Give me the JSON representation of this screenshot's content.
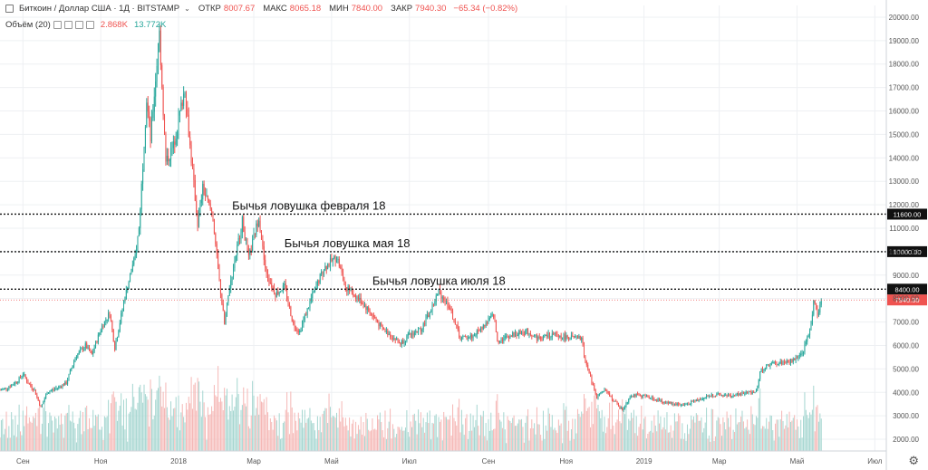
{
  "legend": {
    "symbol": "Биткоин / Доллар США · 1Д · BITSTAMP",
    "open_label": "ОТКР",
    "open": "8007.67",
    "high_label": "МАКС",
    "high": "8065.18",
    "low_label": "МИН",
    "low": "7840.00",
    "close_label": "ЗАКР",
    "close": "7940.30",
    "change": "−65.34 (−0.82%)"
  },
  "volume_legend": {
    "label": "Объём (20)",
    "value1": "2.868K",
    "value2": "13.772K"
  },
  "colors": {
    "up": "#26a69a",
    "down": "#ef5350",
    "volume_up": "#a5d6d0",
    "volume_down": "#f5b7b5",
    "grid": "#eef0f3",
    "text": "#333333"
  },
  "chart_data": {
    "type": "candlestick",
    "title": "Биткоин / Доллар США · 1Д · BITSTAMP",
    "x_range": [
      "2017-08-14",
      "2019-07-10"
    ],
    "y_range": [
      1500,
      20500
    ],
    "y_ticks": [
      2000,
      3000,
      4000,
      5000,
      6000,
      7000,
      8000,
      9000,
      10000,
      11000,
      12000,
      13000,
      14000,
      15000,
      16000,
      17000,
      18000,
      19000,
      20000
    ],
    "y_tick_labels": [
      "2000.00",
      "3000.00",
      "4000.00",
      "5000.00",
      "6000.00",
      "7000.00",
      "8000.00",
      "9000.00",
      "10000.00",
      "11000.00",
      "12000.00",
      "13000.00",
      "14000.00",
      "15000.00",
      "16000.00",
      "17000.00",
      "18000.00",
      "19000.00",
      "20000.00"
    ],
    "x_ticks": [
      {
        "date": "2017-09-01",
        "label": "Сен"
      },
      {
        "date": "2017-11-01",
        "label": "Ноя"
      },
      {
        "date": "2018-01-01",
        "label": "2018"
      },
      {
        "date": "2018-03-01",
        "label": "Мар"
      },
      {
        "date": "2018-05-01",
        "label": "Май"
      },
      {
        "date": "2018-07-01",
        "label": "Июл"
      },
      {
        "date": "2018-09-01",
        "label": "Сен"
      },
      {
        "date": "2018-11-01",
        "label": "Ноя"
      },
      {
        "date": "2019-01-01",
        "label": "2019"
      },
      {
        "date": "2019-03-01",
        "label": "Мар"
      },
      {
        "date": "2019-05-01",
        "label": "Май"
      },
      {
        "date": "2019-07-01",
        "label": "Июл"
      }
    ],
    "price_series": [
      [
        "2017-08-14",
        4100
      ],
      [
        "2017-08-20",
        4200
      ],
      [
        "2017-08-28",
        4500
      ],
      [
        "2017-09-01",
        4800
      ],
      [
        "2017-09-05",
        4400
      ],
      [
        "2017-09-10",
        4100
      ],
      [
        "2017-09-15",
        3350
      ],
      [
        "2017-09-20",
        4000
      ],
      [
        "2017-09-28",
        4200
      ],
      [
        "2017-10-05",
        4400
      ],
      [
        "2017-10-12",
        5500
      ],
      [
        "2017-10-20",
        6000
      ],
      [
        "2017-10-25",
        5600
      ],
      [
        "2017-11-01",
        6700
      ],
      [
        "2017-11-08",
        7400
      ],
      [
        "2017-11-12",
        5900
      ],
      [
        "2017-11-20",
        8100
      ],
      [
        "2017-11-28",
        9800
      ],
      [
        "2017-12-01",
        11000
      ],
      [
        "2017-12-07",
        16500
      ],
      [
        "2017-12-10",
        14800
      ],
      [
        "2017-12-17",
        19300
      ],
      [
        "2017-12-22",
        13800
      ],
      [
        "2017-12-28",
        14500
      ],
      [
        "2018-01-06",
        17000
      ],
      [
        "2018-01-10",
        14500
      ],
      [
        "2018-01-16",
        11200
      ],
      [
        "2018-01-20",
        12700
      ],
      [
        "2018-01-28",
        11500
      ],
      [
        "2018-02-01",
        9200
      ],
      [
        "2018-02-06",
        6900
      ],
      [
        "2018-02-10",
        8500
      ],
      [
        "2018-02-20",
        11300
      ],
      [
        "2018-02-25",
        9700
      ],
      [
        "2018-03-05",
        11500
      ],
      [
        "2018-03-10",
        9200
      ],
      [
        "2018-03-18",
        8200
      ],
      [
        "2018-03-25",
        8500
      ],
      [
        "2018-04-01",
        6900
      ],
      [
        "2018-04-06",
        6600
      ],
      [
        "2018-04-15",
        8000
      ],
      [
        "2018-04-25",
        9300
      ],
      [
        "2018-05-05",
        9800
      ],
      [
        "2018-05-12",
        8500
      ],
      [
        "2018-05-22",
        8000
      ],
      [
        "2018-05-30",
        7500
      ],
      [
        "2018-06-10",
        6700
      ],
      [
        "2018-06-24",
        6100
      ],
      [
        "2018-06-30",
        6400
      ],
      [
        "2018-07-10",
        6700
      ],
      [
        "2018-07-17",
        7400
      ],
      [
        "2018-07-24",
        8300
      ],
      [
        "2018-08-01",
        7700
      ],
      [
        "2018-08-10",
        6300
      ],
      [
        "2018-08-20",
        6400
      ],
      [
        "2018-08-31",
        7000
      ],
      [
        "2018-09-05",
        7300
      ],
      [
        "2018-09-08",
        6200
      ],
      [
        "2018-09-20",
        6450
      ],
      [
        "2018-10-01",
        6600
      ],
      [
        "2018-10-11",
        6300
      ],
      [
        "2018-10-20",
        6450
      ],
      [
        "2018-11-01",
        6350
      ],
      [
        "2018-11-13",
        6300
      ],
      [
        "2018-11-15",
        5600
      ],
      [
        "2018-11-20",
        4600
      ],
      [
        "2018-11-25",
        3800
      ],
      [
        "2018-12-01",
        4100
      ],
      [
        "2018-12-15",
        3250
      ],
      [
        "2018-12-22",
        3900
      ],
      [
        "2019-01-05",
        3800
      ],
      [
        "2019-01-15",
        3600
      ],
      [
        "2019-02-01",
        3450
      ],
      [
        "2019-02-08",
        3600
      ],
      [
        "2019-02-24",
        3900
      ],
      [
        "2019-03-10",
        3850
      ],
      [
        "2019-03-30",
        4050
      ],
      [
        "2019-04-02",
        4900
      ],
      [
        "2019-04-10",
        5200
      ],
      [
        "2019-04-25",
        5300
      ],
      [
        "2019-05-05",
        5600
      ],
      [
        "2019-05-12",
        6900
      ],
      [
        "2019-05-14",
        7900
      ],
      [
        "2019-05-17",
        7300
      ],
      [
        "2019-05-20",
        7950
      ]
    ],
    "horizontal_lines": [
      {
        "price": 11600,
        "label": "Бычья ловушка февраля 18",
        "price_label": "11600.00",
        "label_date": "2018-02-12"
      },
      {
        "price": 10000,
        "label": "Бычья ловушка мая 18",
        "price_label": "10000.00",
        "label_date": "2018-03-25"
      },
      {
        "price": 8400,
        "label": "Бычья ловушка июля 18",
        "price_label": "8400.00",
        "label_date": "2018-06-02"
      }
    ],
    "last_price": {
      "price": 7940.3,
      "label": "7940.30"
    }
  }
}
